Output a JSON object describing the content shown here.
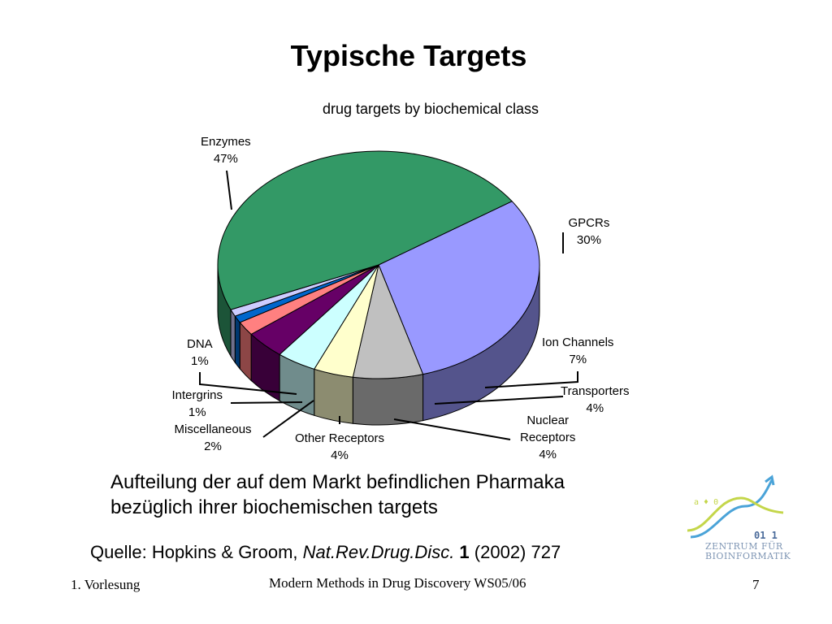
{
  "slide": {
    "title": "Typische Targets",
    "caption_line1": "Aufteilung der auf dem Markt befindlichen Pharmaka",
    "caption_line2": "bezüglich ihrer biochemischen targets",
    "source_prefix": "Quelle: Hopkins & Groom, ",
    "source_journal": "Nat.Rev.Drug.Disc.",
    "source_volume": " 1",
    "source_suffix": " (2002) 727",
    "footer_left": "1. Vorlesung",
    "footer_center": "Modern Methods in Drug Discovery WS05/06",
    "footer_right": "7"
  },
  "logo": {
    "line1": "ZENTRUM FÜR",
    "line2": "BIOINFORMATIK",
    "colors": {
      "arrow": "#4aa3d8",
      "curve": "#c4d64a",
      "text": "#7f96b4"
    }
  },
  "chart_data": {
    "type": "pie",
    "title": "drug targets by biochemical class",
    "start": "top-right (GPCRs begins at about 1 o'clock), going clockwise",
    "slices": [
      {
        "name": "GPCRs",
        "value": 30,
        "label": "30%",
        "color": "#9999ff"
      },
      {
        "name": "Ion Channels",
        "value": 7,
        "label": "7%",
        "color": "#c0c0c0"
      },
      {
        "name": "Transporters",
        "value": 4,
        "label": "4%",
        "color": "#ffffcc"
      },
      {
        "name": "Nuclear Receptors",
        "value": 4,
        "label": "4%",
        "color": "#ccffff"
      },
      {
        "name": "Other Receptors",
        "value": 4,
        "label": "4%",
        "color": "#660066"
      },
      {
        "name": "Miscellaneous",
        "value": 2,
        "label": "2%",
        "color": "#ff8080"
      },
      {
        "name": "Intergrins",
        "value": 1,
        "label": "1%",
        "color": "#0066cc"
      },
      {
        "name": "DNA",
        "value": 1,
        "label": "1%",
        "color": "#ccccff"
      },
      {
        "name": "Enzymes",
        "value": 47,
        "label": "47%",
        "color": "#339966"
      }
    ]
  }
}
